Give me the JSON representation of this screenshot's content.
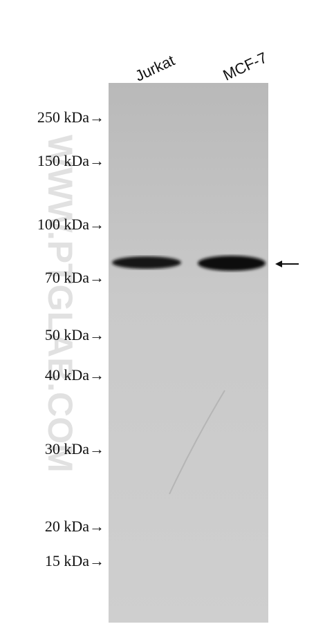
{
  "lanes": [
    "Jurkat",
    "MCF-7"
  ],
  "markers": [
    "250 kDa→",
    "150 kDa→",
    "100 kDa→",
    "70 kDa→",
    "50 kDa→",
    "40 kDa→",
    "30 kDa→",
    "20 kDa→",
    "15 kDa→"
  ],
  "watermark": "WWW.PTGLAB.COM"
}
